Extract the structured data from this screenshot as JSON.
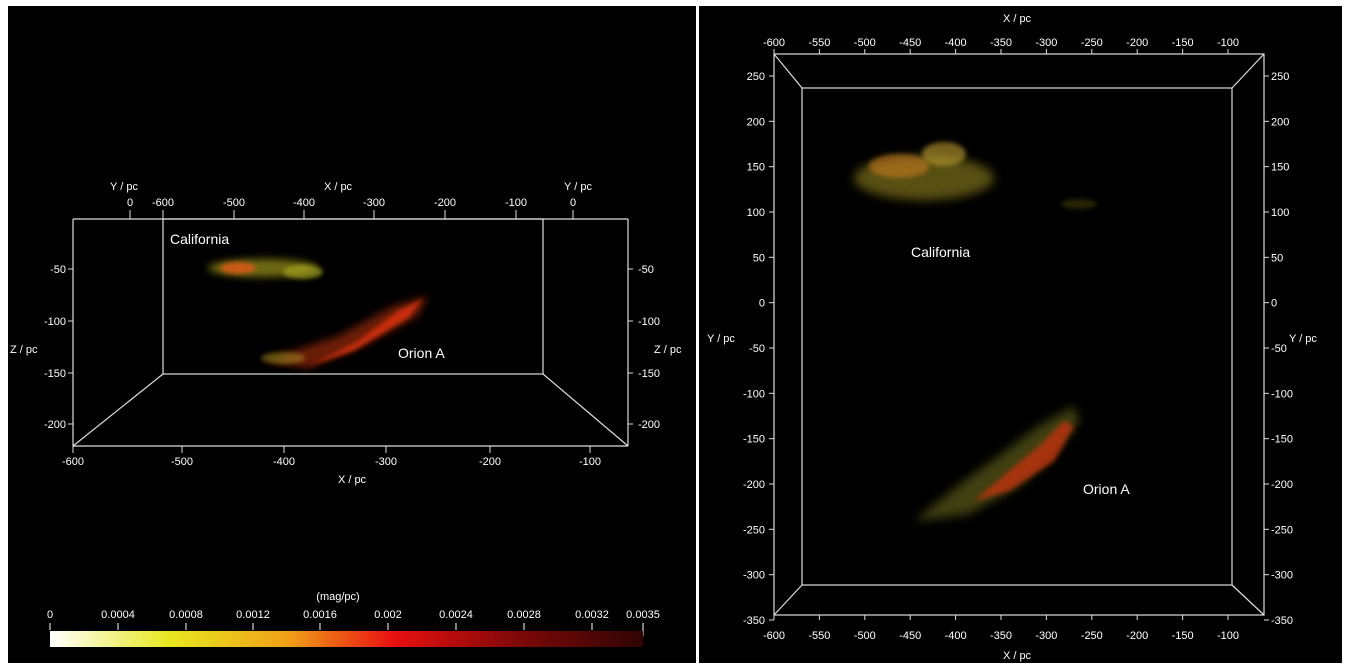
{
  "colorbar": {
    "unit": "(mag/pc)",
    "ticks": [
      "0",
      "0.0004",
      "0.0008",
      "0.0012",
      "0.0016",
      "0.002",
      "0.0024",
      "0.0028",
      "0.0032",
      "0.0035"
    ],
    "stops": [
      "#ffffff",
      "#e8e820",
      "#f0a018",
      "#e81010",
      "#7a0808",
      "#300404"
    ]
  },
  "left_view": {
    "x_axis_title": "X / pc",
    "y_axis_title": "Y / pc",
    "z_axis_title": "Z / pc",
    "top_x_ticks": [
      "-600",
      "-500",
      "-400",
      "-300",
      "-200",
      "-100"
    ],
    "bottom_x_ticks": [
      "-600",
      "-500",
      "-400",
      "-300",
      "-200",
      "-100"
    ],
    "y_ticks": [
      "0",
      "0"
    ],
    "z_ticks": [
      "-50",
      "-100",
      "-150",
      "-200"
    ],
    "labels": {
      "california": "California",
      "orion": "Orion A"
    }
  },
  "right_view": {
    "x_axis_title": "X / pc",
    "y_axis_title": "Y / pc",
    "x_ticks": [
      "-600",
      "-550",
      "-500",
      "-450",
      "-400",
      "-350",
      "-300",
      "-250",
      "-200",
      "-150",
      "-100"
    ],
    "y_ticks": [
      "250",
      "200",
      "150",
      "100",
      "50",
      "0",
      "-50",
      "-100",
      "-150",
      "-200",
      "-250",
      "-300",
      "-350"
    ],
    "labels": {
      "california": "California",
      "orion": "Orion A"
    }
  }
}
